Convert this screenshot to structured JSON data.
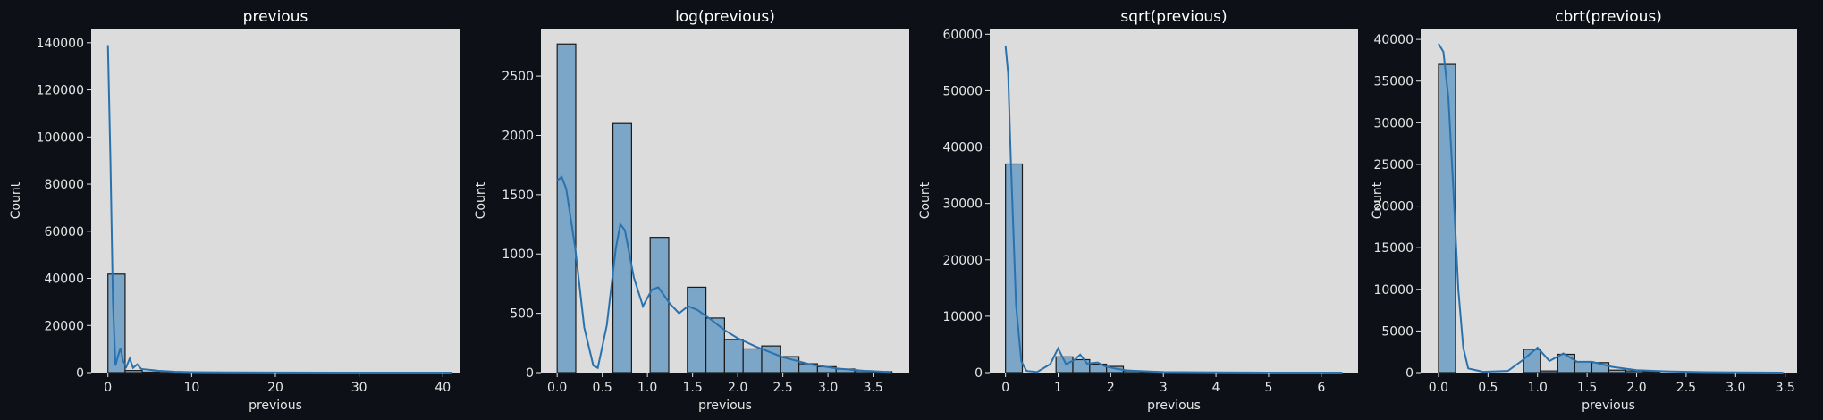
{
  "chart_data": [
    {
      "type": "bar",
      "title": "previous",
      "xlabel": "previous",
      "ylabel": "Count",
      "xlim": [
        -2,
        42
      ],
      "ylim": [
        0,
        146000
      ],
      "xticks": [
        0,
        10,
        20,
        30,
        40
      ],
      "yticks": [
        0,
        20000,
        40000,
        60000,
        80000,
        100000,
        120000,
        140000
      ],
      "bins": [
        {
          "x0": 0.0,
          "x1": 2.05,
          "count": 41800
        },
        {
          "x0": 2.05,
          "x1": 4.1,
          "count": 900
        },
        {
          "x0": 4.1,
          "x1": 6.15,
          "count": 250
        },
        {
          "x0": 6.15,
          "x1": 8.2,
          "count": 80
        },
        {
          "x0": 8.2,
          "x1": 10.25,
          "count": 30
        },
        {
          "x0": 10.25,
          "x1": 41.0,
          "count": 10
        }
      ],
      "kde": [
        [
          0,
          139000
        ],
        [
          0.3,
          90000
        ],
        [
          0.6,
          30000
        ],
        [
          0.9,
          3000
        ],
        [
          1.2,
          7000
        ],
        [
          1.5,
          10500
        ],
        [
          1.8,
          5000
        ],
        [
          2.2,
          2500
        ],
        [
          2.6,
          6000
        ],
        [
          3.0,
          2000
        ],
        [
          3.5,
          3500
        ],
        [
          4.0,
          1500
        ],
        [
          5.0,
          1200
        ],
        [
          6.0,
          800
        ],
        [
          8.0,
          400
        ],
        [
          10.0,
          200
        ],
        [
          15.0,
          80
        ],
        [
          20.0,
          30
        ],
        [
          30.0,
          10
        ],
        [
          41.0,
          0
        ]
      ]
    },
    {
      "type": "bar",
      "title": "log(previous)",
      "xlabel": "previous",
      "ylabel": "Count",
      "xlim": [
        -0.18,
        3.9
      ],
      "ylim": [
        0,
        2900
      ],
      "xticks": [
        0.0,
        0.5,
        1.0,
        1.5,
        2.0,
        2.5,
        3.0,
        3.5
      ],
      "yticks": [
        0,
        500,
        1000,
        1500,
        2000,
        2500
      ],
      "bins": [
        {
          "x0": 0.0,
          "x1": 0.206,
          "count": 2770
        },
        {
          "x0": 0.206,
          "x1": 0.412,
          "count": 0
        },
        {
          "x0": 0.412,
          "x1": 0.618,
          "count": 0
        },
        {
          "x0": 0.618,
          "x1": 0.824,
          "count": 2100
        },
        {
          "x0": 0.824,
          "x1": 1.03,
          "count": 0
        },
        {
          "x0": 1.03,
          "x1": 1.236,
          "count": 1140
        },
        {
          "x0": 1.236,
          "x1": 1.442,
          "count": 0
        },
        {
          "x0": 1.442,
          "x1": 1.648,
          "count": 720
        },
        {
          "x0": 1.648,
          "x1": 1.854,
          "count": 460
        },
        {
          "x0": 1.854,
          "x1": 2.06,
          "count": 280
        },
        {
          "x0": 2.06,
          "x1": 2.266,
          "count": 200
        },
        {
          "x0": 2.266,
          "x1": 2.472,
          "count": 225
        },
        {
          "x0": 2.472,
          "x1": 2.678,
          "count": 135
        },
        {
          "x0": 2.678,
          "x1": 2.884,
          "count": 75
        },
        {
          "x0": 2.884,
          "x1": 3.09,
          "count": 50
        },
        {
          "x0": 3.09,
          "x1": 3.296,
          "count": 30
        },
        {
          "x0": 3.296,
          "x1": 3.502,
          "count": 15
        },
        {
          "x0": 3.502,
          "x1": 3.708,
          "count": 8
        }
      ],
      "kde": [
        [
          0.0,
          1620
        ],
        [
          0.05,
          1650
        ],
        [
          0.1,
          1550
        ],
        [
          0.2,
          1050
        ],
        [
          0.3,
          380
        ],
        [
          0.4,
          60
        ],
        [
          0.45,
          40
        ],
        [
          0.55,
          400
        ],
        [
          0.65,
          1050
        ],
        [
          0.7,
          1250
        ],
        [
          0.75,
          1200
        ],
        [
          0.85,
          800
        ],
        [
          0.95,
          560
        ],
        [
          1.05,
          700
        ],
        [
          1.12,
          720
        ],
        [
          1.25,
          580
        ],
        [
          1.35,
          500
        ],
        [
          1.45,
          560
        ],
        [
          1.55,
          530
        ],
        [
          1.7,
          450
        ],
        [
          1.85,
          360
        ],
        [
          2.0,
          290
        ],
        [
          2.2,
          220
        ],
        [
          2.5,
          130
        ],
        [
          2.8,
          70
        ],
        [
          3.1,
          35
        ],
        [
          3.4,
          15
        ],
        [
          3.7,
          5
        ]
      ]
    },
    {
      "type": "bar",
      "title": "sqrt(previous)",
      "xlabel": "previous",
      "ylabel": "Count",
      "xlim": [
        -0.3,
        6.7
      ],
      "ylim": [
        0,
        61000
      ],
      "xticks": [
        0,
        1,
        2,
        3,
        4,
        5,
        6
      ],
      "yticks": [
        0,
        10000,
        20000,
        30000,
        40000,
        50000,
        60000
      ],
      "bins": [
        {
          "x0": 0.0,
          "x1": 0.32,
          "count": 37000
        },
        {
          "x0": 0.96,
          "x1": 1.28,
          "count": 2800
        },
        {
          "x0": 1.28,
          "x1": 1.6,
          "count": 2300
        },
        {
          "x0": 1.6,
          "x1": 1.92,
          "count": 1500
        },
        {
          "x0": 1.92,
          "x1": 2.24,
          "count": 1100
        },
        {
          "x0": 2.24,
          "x1": 2.56,
          "count": 300
        },
        {
          "x0": 2.56,
          "x1": 2.88,
          "count": 200
        },
        {
          "x0": 2.88,
          "x1": 3.2,
          "count": 100
        }
      ],
      "kde": [
        [
          0.0,
          58000
        ],
        [
          0.05,
          53000
        ],
        [
          0.1,
          38000
        ],
        [
          0.2,
          12000
        ],
        [
          0.3,
          2000
        ],
        [
          0.4,
          300
        ],
        [
          0.6,
          100
        ],
        [
          0.85,
          1500
        ],
        [
          1.0,
          4300
        ],
        [
          1.15,
          1500
        ],
        [
          1.3,
          2200
        ],
        [
          1.42,
          3200
        ],
        [
          1.55,
          1600
        ],
        [
          1.75,
          1800
        ],
        [
          1.9,
          1100
        ],
        [
          2.1,
          700
        ],
        [
          2.3,
          400
        ],
        [
          2.6,
          250
        ],
        [
          3.0,
          100
        ],
        [
          4.0,
          30
        ],
        [
          5.0,
          10
        ],
        [
          6.4,
          0
        ]
      ]
    },
    {
      "type": "bar",
      "title": "cbrt(previous)",
      "xlabel": "previous",
      "ylabel": "Count",
      "xlim": [
        -0.18,
        3.62
      ],
      "ylim": [
        0,
        41300
      ],
      "xticks": [
        0.0,
        0.5,
        1.0,
        1.5,
        2.0,
        2.5,
        3.0,
        3.5
      ],
      "yticks": [
        0,
        5000,
        10000,
        15000,
        20000,
        25000,
        30000,
        35000,
        40000
      ],
      "bins": [
        {
          "x0": 0.0,
          "x1": 0.172,
          "count": 37000
        },
        {
          "x0": 0.86,
          "x1": 1.032,
          "count": 2800
        },
        {
          "x0": 1.032,
          "x1": 1.204,
          "count": 200
        },
        {
          "x0": 1.204,
          "x1": 1.376,
          "count": 2200
        },
        {
          "x0": 1.376,
          "x1": 1.548,
          "count": 1300
        },
        {
          "x0": 1.548,
          "x1": 1.72,
          "count": 1200
        },
        {
          "x0": 1.72,
          "x1": 1.892,
          "count": 300
        },
        {
          "x0": 1.892,
          "x1": 2.064,
          "count": 200
        },
        {
          "x0": 2.064,
          "x1": 2.236,
          "count": 100
        }
      ],
      "kde": [
        [
          0.0,
          39500
        ],
        [
          0.05,
          38500
        ],
        [
          0.1,
          33000
        ],
        [
          0.15,
          22000
        ],
        [
          0.2,
          10000
        ],
        [
          0.25,
          3000
        ],
        [
          0.3,
          500
        ],
        [
          0.45,
          100
        ],
        [
          0.7,
          200
        ],
        [
          0.85,
          1500
        ],
        [
          1.0,
          3000
        ],
        [
          1.12,
          1400
        ],
        [
          1.26,
          2300
        ],
        [
          1.4,
          1300
        ],
        [
          1.55,
          1300
        ],
        [
          1.75,
          700
        ],
        [
          2.0,
          300
        ],
        [
          2.3,
          150
        ],
        [
          2.7,
          50
        ],
        [
          3.0,
          20
        ],
        [
          3.48,
          0
        ]
      ]
    }
  ]
}
